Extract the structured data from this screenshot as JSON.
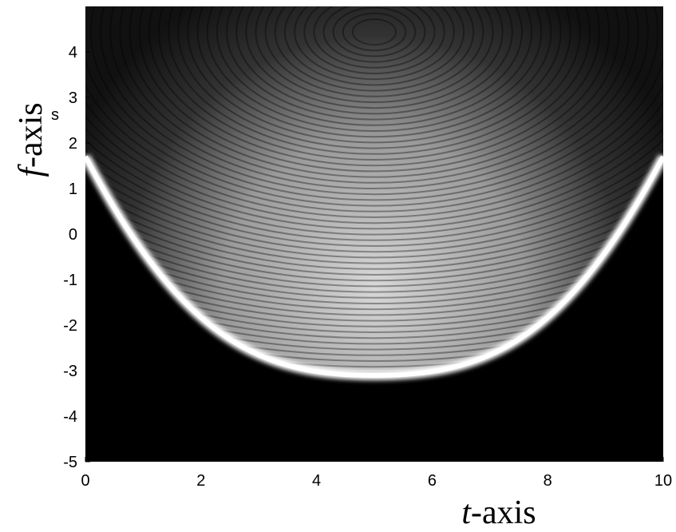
{
  "chart_data": {
    "type": "image",
    "xlabel": "t-axis",
    "ylabel": "f-axis",
    "annotation": "s",
    "xlim": [
      0,
      10
    ],
    "xticks": [
      0,
      2,
      4,
      6,
      8,
      10
    ],
    "ylim": [
      -5,
      5
    ],
    "yticks": [
      -5,
      -4,
      -3,
      -2,
      -1,
      0,
      1,
      2,
      3,
      4
    ]
  }
}
